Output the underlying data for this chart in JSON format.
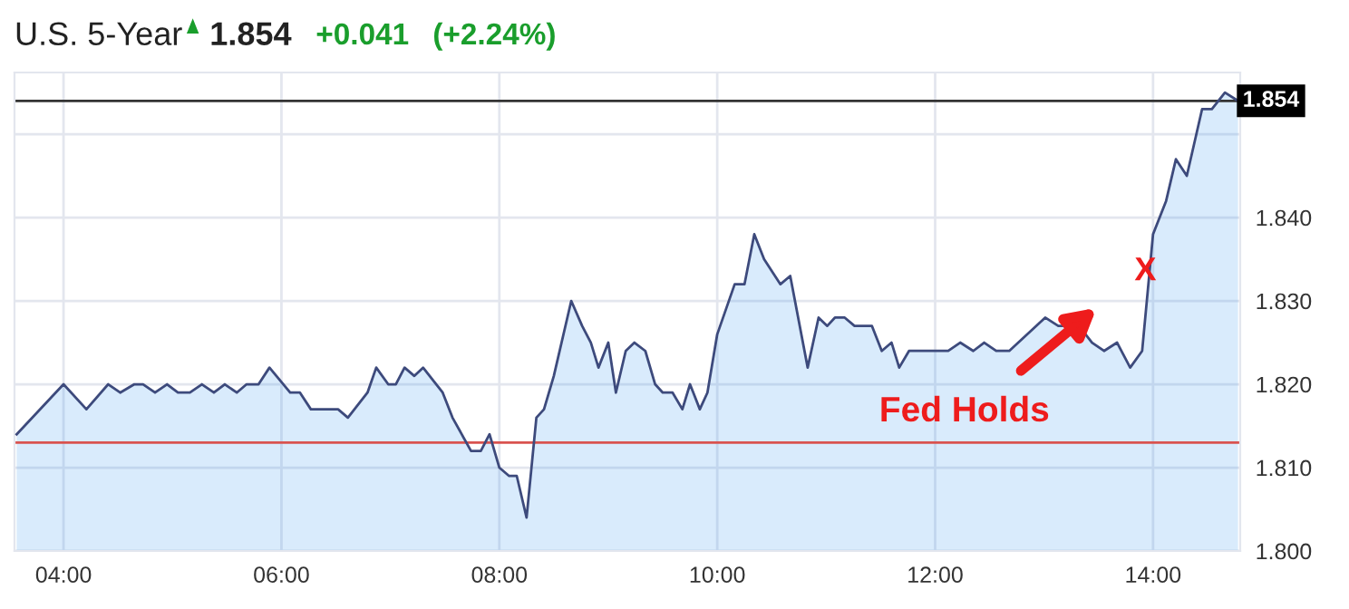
{
  "chart_data": {
    "type": "area",
    "title": "U.S. 5-Year",
    "annotations": [
      "1.854",
      "+0.041",
      "(+2.24%)",
      "Fed Holds",
      {
        "text": "X",
        "x": 13.93,
        "y": 1.8335
      }
    ],
    "series": [
      {
        "color": "#3d4a7c",
        "x": [
          3.57,
          4.0,
          4.21,
          4.41,
          4.52,
          4.65,
          4.73,
          4.84,
          4.95,
          5.05,
          5.16,
          5.27,
          5.38,
          5.48,
          5.59,
          5.68,
          5.79,
          5.89,
          6.08,
          6.17,
          6.27,
          6.52,
          6.61,
          6.79,
          6.87,
          6.98,
          7.05,
          7.13,
          7.22,
          7.3,
          7.48,
          7.57,
          7.74,
          7.83,
          7.91,
          8.0,
          8.09,
          8.16,
          8.25,
          8.34,
          8.41,
          8.5,
          8.66,
          8.76,
          8.84,
          8.91,
          9.0,
          9.07,
          9.16,
          9.24,
          9.34,
          9.43,
          9.5,
          9.59,
          9.68,
          9.75,
          9.84,
          9.91,
          10.0,
          10.16,
          10.25,
          10.34,
          10.43,
          10.58,
          10.67,
          10.83,
          10.93,
          11.01,
          11.08,
          11.17,
          11.26,
          11.42,
          11.51,
          11.6,
          11.67,
          11.76,
          12.12,
          12.23,
          12.35,
          12.45,
          12.56,
          12.68,
          13.01,
          13.13,
          13.32,
          13.44,
          13.55,
          13.67,
          13.79,
          13.9,
          14.0,
          14.12,
          14.21,
          14.31,
          14.45,
          14.54,
          14.66,
          14.78
        ],
        "values": [
          1.814,
          1.82,
          1.817,
          1.82,
          1.819,
          1.82,
          1.82,
          1.819,
          1.82,
          1.819,
          1.819,
          1.82,
          1.819,
          1.82,
          1.819,
          1.82,
          1.82,
          1.822,
          1.819,
          1.819,
          1.817,
          1.817,
          1.816,
          1.819,
          1.822,
          1.82,
          1.82,
          1.822,
          1.821,
          1.822,
          1.819,
          1.816,
          1.812,
          1.812,
          1.814,
          1.81,
          1.809,
          1.809,
          1.804,
          1.816,
          1.817,
          1.821,
          1.83,
          1.827,
          1.825,
          1.822,
          1.825,
          1.819,
          1.824,
          1.825,
          1.824,
          1.82,
          1.819,
          1.819,
          1.817,
          1.82,
          1.817,
          1.819,
          1.826,
          1.832,
          1.832,
          1.838,
          1.835,
          1.832,
          1.833,
          1.822,
          1.828,
          1.827,
          1.828,
          1.828,
          1.827,
          1.827,
          1.824,
          1.825,
          1.822,
          1.824,
          1.824,
          1.825,
          1.824,
          1.825,
          1.824,
          1.824,
          1.828,
          1.827,
          1.827,
          1.825,
          1.824,
          1.825,
          1.822,
          1.824,
          1.838,
          1.842,
          1.847,
          1.845,
          1.853,
          1.853,
          1.855,
          1.854
        ]
      }
    ],
    "xlim": [
      3.55,
      14.8
    ],
    "xticks": [
      {
        "value": 4,
        "label": "04:00"
      },
      {
        "value": 6,
        "label": "06:00"
      },
      {
        "value": 8,
        "label": "08:00"
      },
      {
        "value": 10,
        "label": "10:00"
      },
      {
        "value": 12,
        "label": "12:00"
      },
      {
        "value": 14,
        "label": "14:00"
      }
    ],
    "ylim": [
      1.8,
      1.8574
    ],
    "yticks": [
      {
        "value": 1.8,
        "label": "1.800"
      },
      {
        "value": 1.81,
        "label": "1.810"
      },
      {
        "value": 1.82,
        "label": "1.820"
      },
      {
        "value": 1.83,
        "label": "1.830"
      },
      {
        "value": 1.84,
        "label": "1.840"
      },
      {
        "value": 1.85,
        "label": null
      }
    ],
    "ref_lines": [
      {
        "axis": "y",
        "value": 1.854,
        "label": "1.854",
        "color": "#333333"
      },
      {
        "axis": "y",
        "value": 1.813,
        "color": "#d9534f"
      }
    ],
    "grid": true,
    "marker": "none",
    "line_style": "solid"
  }
}
